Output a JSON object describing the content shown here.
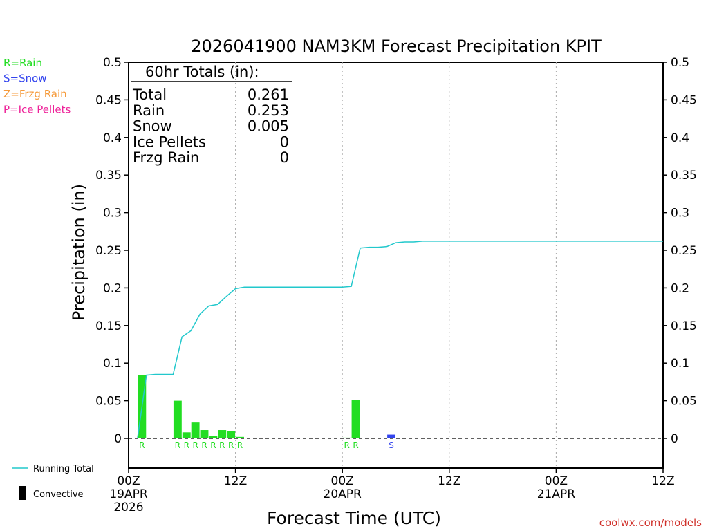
{
  "chart_data": {
    "type": "bar",
    "title": "2026041900 NAM3KM Forecast Precipitation KPIT",
    "xlabel": "Forecast Time (UTC)",
    "ylabel": "Precipitation (in)",
    "ylim": [
      -0.04,
      0.5
    ],
    "xlim_hours": [
      0,
      60
    ],
    "yticks": [
      "0",
      "0.05",
      "0.1",
      "0.15",
      "0.2",
      "0.25",
      "0.3",
      "0.35",
      "0.4",
      "0.45",
      "0.5"
    ],
    "xticks": [
      {
        "hour": 0,
        "label": "00Z",
        "date": "19APR",
        "year": "2026"
      },
      {
        "hour": 12,
        "label": "12Z",
        "date": "",
        "year": ""
      },
      {
        "hour": 24,
        "label": "00Z",
        "date": "20APR",
        "year": ""
      },
      {
        "hour": 36,
        "label": "12Z",
        "date": "",
        "year": ""
      },
      {
        "hour": 48,
        "label": "00Z",
        "date": "21APR",
        "year": ""
      },
      {
        "hour": 60,
        "label": "12Z",
        "date": "",
        "year": ""
      }
    ],
    "vgrid_hours": [
      12,
      24,
      36,
      48
    ],
    "type_legend": [
      {
        "label": "R=Rain",
        "color": "#22dd22"
      },
      {
        "label": "S=Snow",
        "color": "#3344ee"
      },
      {
        "label": "Z=Frzg Rain",
        "color": "#f59a3a"
      },
      {
        "label": "P=Ice Pellets",
        "color": "#ee2299"
      }
    ],
    "totals_box": {
      "heading": "60hr Totals (in):",
      "rows": [
        {
          "label": "Total",
          "value": "0.261"
        },
        {
          "label": "Rain",
          "value": "0.253"
        },
        {
          "label": "Snow",
          "value": "0.005"
        },
        {
          "label": "Ice Pellets",
          "value": "0"
        },
        {
          "label": "Frzg Rain",
          "value": "0"
        }
      ]
    },
    "bars": [
      {
        "hour": 2,
        "value": 0.084,
        "ptype": "R",
        "code": "R"
      },
      {
        "hour": 6,
        "value": 0.05,
        "ptype": "R",
        "code": "R"
      },
      {
        "hour": 7,
        "value": 0.008,
        "ptype": "R",
        "code": "R"
      },
      {
        "hour": 8,
        "value": 0.021,
        "ptype": "R",
        "code": "R"
      },
      {
        "hour": 9,
        "value": 0.011,
        "ptype": "R",
        "code": "R"
      },
      {
        "hour": 10,
        "value": 0.003,
        "ptype": "R",
        "code": "R"
      },
      {
        "hour": 11,
        "value": 0.011,
        "ptype": "R",
        "code": "R"
      },
      {
        "hour": 12,
        "value": 0.01,
        "ptype": "R",
        "code": "R"
      },
      {
        "hour": 13,
        "value": 0.002,
        "ptype": "R",
        "code": "R"
      },
      {
        "hour": 25,
        "value": 0.001,
        "ptype": "R",
        "code": "R"
      },
      {
        "hour": 26,
        "value": 0.051,
        "ptype": "R",
        "code": "R"
      },
      {
        "hour": 30,
        "value": 0.005,
        "ptype": "S",
        "code": "S"
      }
    ],
    "running_total": {
      "name": "Running Total",
      "color": "#22c8cc",
      "x": [
        1,
        2,
        3,
        4,
        5,
        6,
        7,
        8,
        9,
        10,
        11,
        12,
        13,
        14,
        24,
        25,
        26,
        27,
        28,
        29,
        30,
        31,
        32,
        33,
        60
      ],
      "y": [
        0.0,
        0.084,
        0.085,
        0.085,
        0.085,
        0.135,
        0.143,
        0.165,
        0.176,
        0.178,
        0.189,
        0.199,
        0.201,
        0.201,
        0.201,
        0.202,
        0.253,
        0.254,
        0.254,
        0.255,
        0.26,
        0.261,
        0.261,
        0.262,
        0.262
      ]
    },
    "bottom_legend": [
      {
        "name": "Running Total",
        "kind": "line"
      },
      {
        "name": "Convective",
        "kind": "bar"
      }
    ],
    "credit": "coolwx.com/models"
  }
}
